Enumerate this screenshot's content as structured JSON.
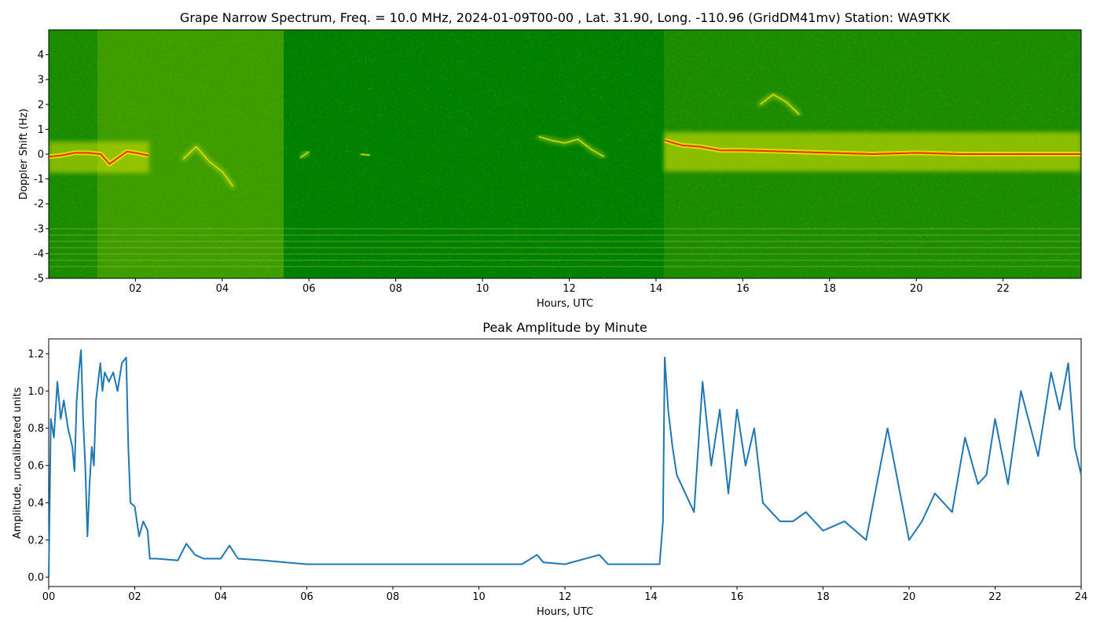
{
  "chart_data": [
    {
      "type": "heatmap",
      "title": "Grape Narrow Spectrum, Freq. = 10.0 MHz, 2024-01-09T00-00 , Lat.  31.90, Long. -110.96 (GridDM41mv) Station: WA9TKK",
      "xlabel": "Hours, UTC",
      "ylabel": "Doppler Shift (Hz)",
      "xlim": [
        0,
        23.8
      ],
      "ylim": [
        -5,
        5
      ],
      "xticks": [
        "02",
        "04",
        "06",
        "08",
        "10",
        "12",
        "14",
        "16",
        "18",
        "20",
        "22"
      ],
      "xtick_values": [
        2,
        4,
        6,
        8,
        10,
        12,
        14,
        16,
        18,
        20,
        22
      ],
      "yticks": [
        "-5",
        "-4",
        "-3",
        "-2",
        "-1",
        "0",
        "1",
        "2",
        "3",
        "4"
      ],
      "ytick_values": [
        -5,
        -4,
        -3,
        -2,
        -1,
        0,
        1,
        2,
        3,
        4
      ],
      "colors": {
        "background": "#008000",
        "moderate": "#e8e800",
        "strong": "#ff2a00"
      },
      "carrier_trace": [
        [
          0.0,
          -0.1
        ],
        [
          0.3,
          -0.05
        ],
        [
          0.6,
          0.05
        ],
        [
          0.9,
          0.05
        ],
        [
          1.2,
          0.0
        ],
        [
          1.4,
          -0.4
        ],
        [
          1.6,
          -0.15
        ],
        [
          1.8,
          0.1
        ],
        [
          2.0,
          0.05
        ],
        [
          2.3,
          -0.05
        ],
        [
          14.2,
          0.55
        ],
        [
          14.6,
          0.35
        ],
        [
          15.0,
          0.3
        ],
        [
          15.5,
          0.15
        ],
        [
          16.0,
          0.15
        ],
        [
          17.0,
          0.1
        ],
        [
          18.0,
          0.05
        ],
        [
          19.0,
          0.0
        ],
        [
          20.0,
          0.05
        ],
        [
          21.0,
          0.0
        ],
        [
          22.0,
          0.0
        ],
        [
          23.0,
          0.0
        ],
        [
          23.8,
          0.0
        ]
      ],
      "weak_traces": [
        [
          [
            3.1,
            -0.2
          ],
          [
            3.4,
            0.3
          ],
          [
            3.7,
            -0.3
          ],
          [
            4.0,
            -0.7
          ],
          [
            4.25,
            -1.3
          ]
        ],
        [
          [
            11.3,
            0.7
          ],
          [
            11.6,
            0.55
          ],
          [
            11.9,
            0.45
          ],
          [
            12.2,
            0.6
          ],
          [
            12.5,
            0.2
          ],
          [
            12.8,
            -0.1
          ]
        ],
        [
          [
            5.8,
            -0.15
          ],
          [
            6.0,
            0.1
          ]
        ],
        [
          [
            7.2,
            0.0
          ],
          [
            7.4,
            -0.05
          ]
        ],
        [
          [
            16.4,
            2.0
          ],
          [
            16.7,
            2.4
          ],
          [
            17.0,
            2.1
          ],
          [
            17.3,
            1.6
          ]
        ]
      ]
    },
    {
      "type": "line",
      "title": "Peak Amplitude by Minute",
      "xlabel": "Hours, UTC",
      "ylabel": "Amplitude, uncalibrated units",
      "xlim": [
        0,
        24
      ],
      "ylim": [
        -0.05,
        1.28
      ],
      "xticks": [
        "00",
        "02",
        "04",
        "06",
        "08",
        "10",
        "12",
        "14",
        "16",
        "18",
        "20",
        "22",
        "24"
      ],
      "xtick_values": [
        0,
        2,
        4,
        6,
        8,
        10,
        12,
        14,
        16,
        18,
        20,
        22,
        24
      ],
      "yticks": [
        "0.0",
        "0.2",
        "0.4",
        "0.6",
        "0.8",
        "1.0",
        "1.2"
      ],
      "ytick_values": [
        0,
        0.2,
        0.4,
        0.6,
        0.8,
        1.0,
        1.2
      ],
      "color": "#1f77b4",
      "x": [
        0,
        0.05,
        0.12,
        0.2,
        0.28,
        0.35,
        0.45,
        0.55,
        0.6,
        0.65,
        0.7,
        0.75,
        0.8,
        0.85,
        0.9,
        0.95,
        1.0,
        1.05,
        1.1,
        1.2,
        1.25,
        1.3,
        1.4,
        1.5,
        1.6,
        1.7,
        1.8,
        1.85,
        1.9,
        2.0,
        2.1,
        2.2,
        2.3,
        2.35,
        2.5,
        3.0,
        3.2,
        3.4,
        3.6,
        4.0,
        4.2,
        4.4,
        5.0,
        5.5,
        6.0,
        7.0,
        8.0,
        9.0,
        10.0,
        11.0,
        11.35,
        11.5,
        12.0,
        12.8,
        13.0,
        14.0,
        14.2,
        14.28,
        14.32,
        14.4,
        14.5,
        14.6,
        14.8,
        15.0,
        15.2,
        15.4,
        15.6,
        15.8,
        16.0,
        16.2,
        16.4,
        16.6,
        16.8,
        17.0,
        17.3,
        17.6,
        18.0,
        18.5,
        19.0,
        19.5,
        20.0,
        20.3,
        20.6,
        21.0,
        21.3,
        21.6,
        21.8,
        22.0,
        22.3,
        22.6,
        23.0,
        23.3,
        23.5,
        23.7,
        23.85,
        24.0
      ],
      "y": [
        0.0,
        0.85,
        0.75,
        1.05,
        0.85,
        0.95,
        0.8,
        0.7,
        0.57,
        0.95,
        1.1,
        1.22,
        0.85,
        0.6,
        0.22,
        0.5,
        0.7,
        0.6,
        0.95,
        1.15,
        1.0,
        1.1,
        1.05,
        1.1,
        1.0,
        1.15,
        1.18,
        0.7,
        0.4,
        0.38,
        0.22,
        0.3,
        0.25,
        0.1,
        0.1,
        0.09,
        0.18,
        0.12,
        0.1,
        0.1,
        0.17,
        0.1,
        0.09,
        0.08,
        0.07,
        0.07,
        0.07,
        0.07,
        0.07,
        0.07,
        0.12,
        0.08,
        0.07,
        0.12,
        0.07,
        0.07,
        0.07,
        0.3,
        1.18,
        0.9,
        0.7,
        0.55,
        0.45,
        0.35,
        1.05,
        0.6,
        0.9,
        0.45,
        0.9,
        0.6,
        0.8,
        0.4,
        0.35,
        0.3,
        0.3,
        0.35,
        0.25,
        0.3,
        0.2,
        0.8,
        0.2,
        0.3,
        0.45,
        0.35,
        0.75,
        0.5,
        0.55,
        0.85,
        0.5,
        1.0,
        0.65,
        1.1,
        0.9,
        1.15,
        0.7,
        0.55
      ]
    }
  ]
}
